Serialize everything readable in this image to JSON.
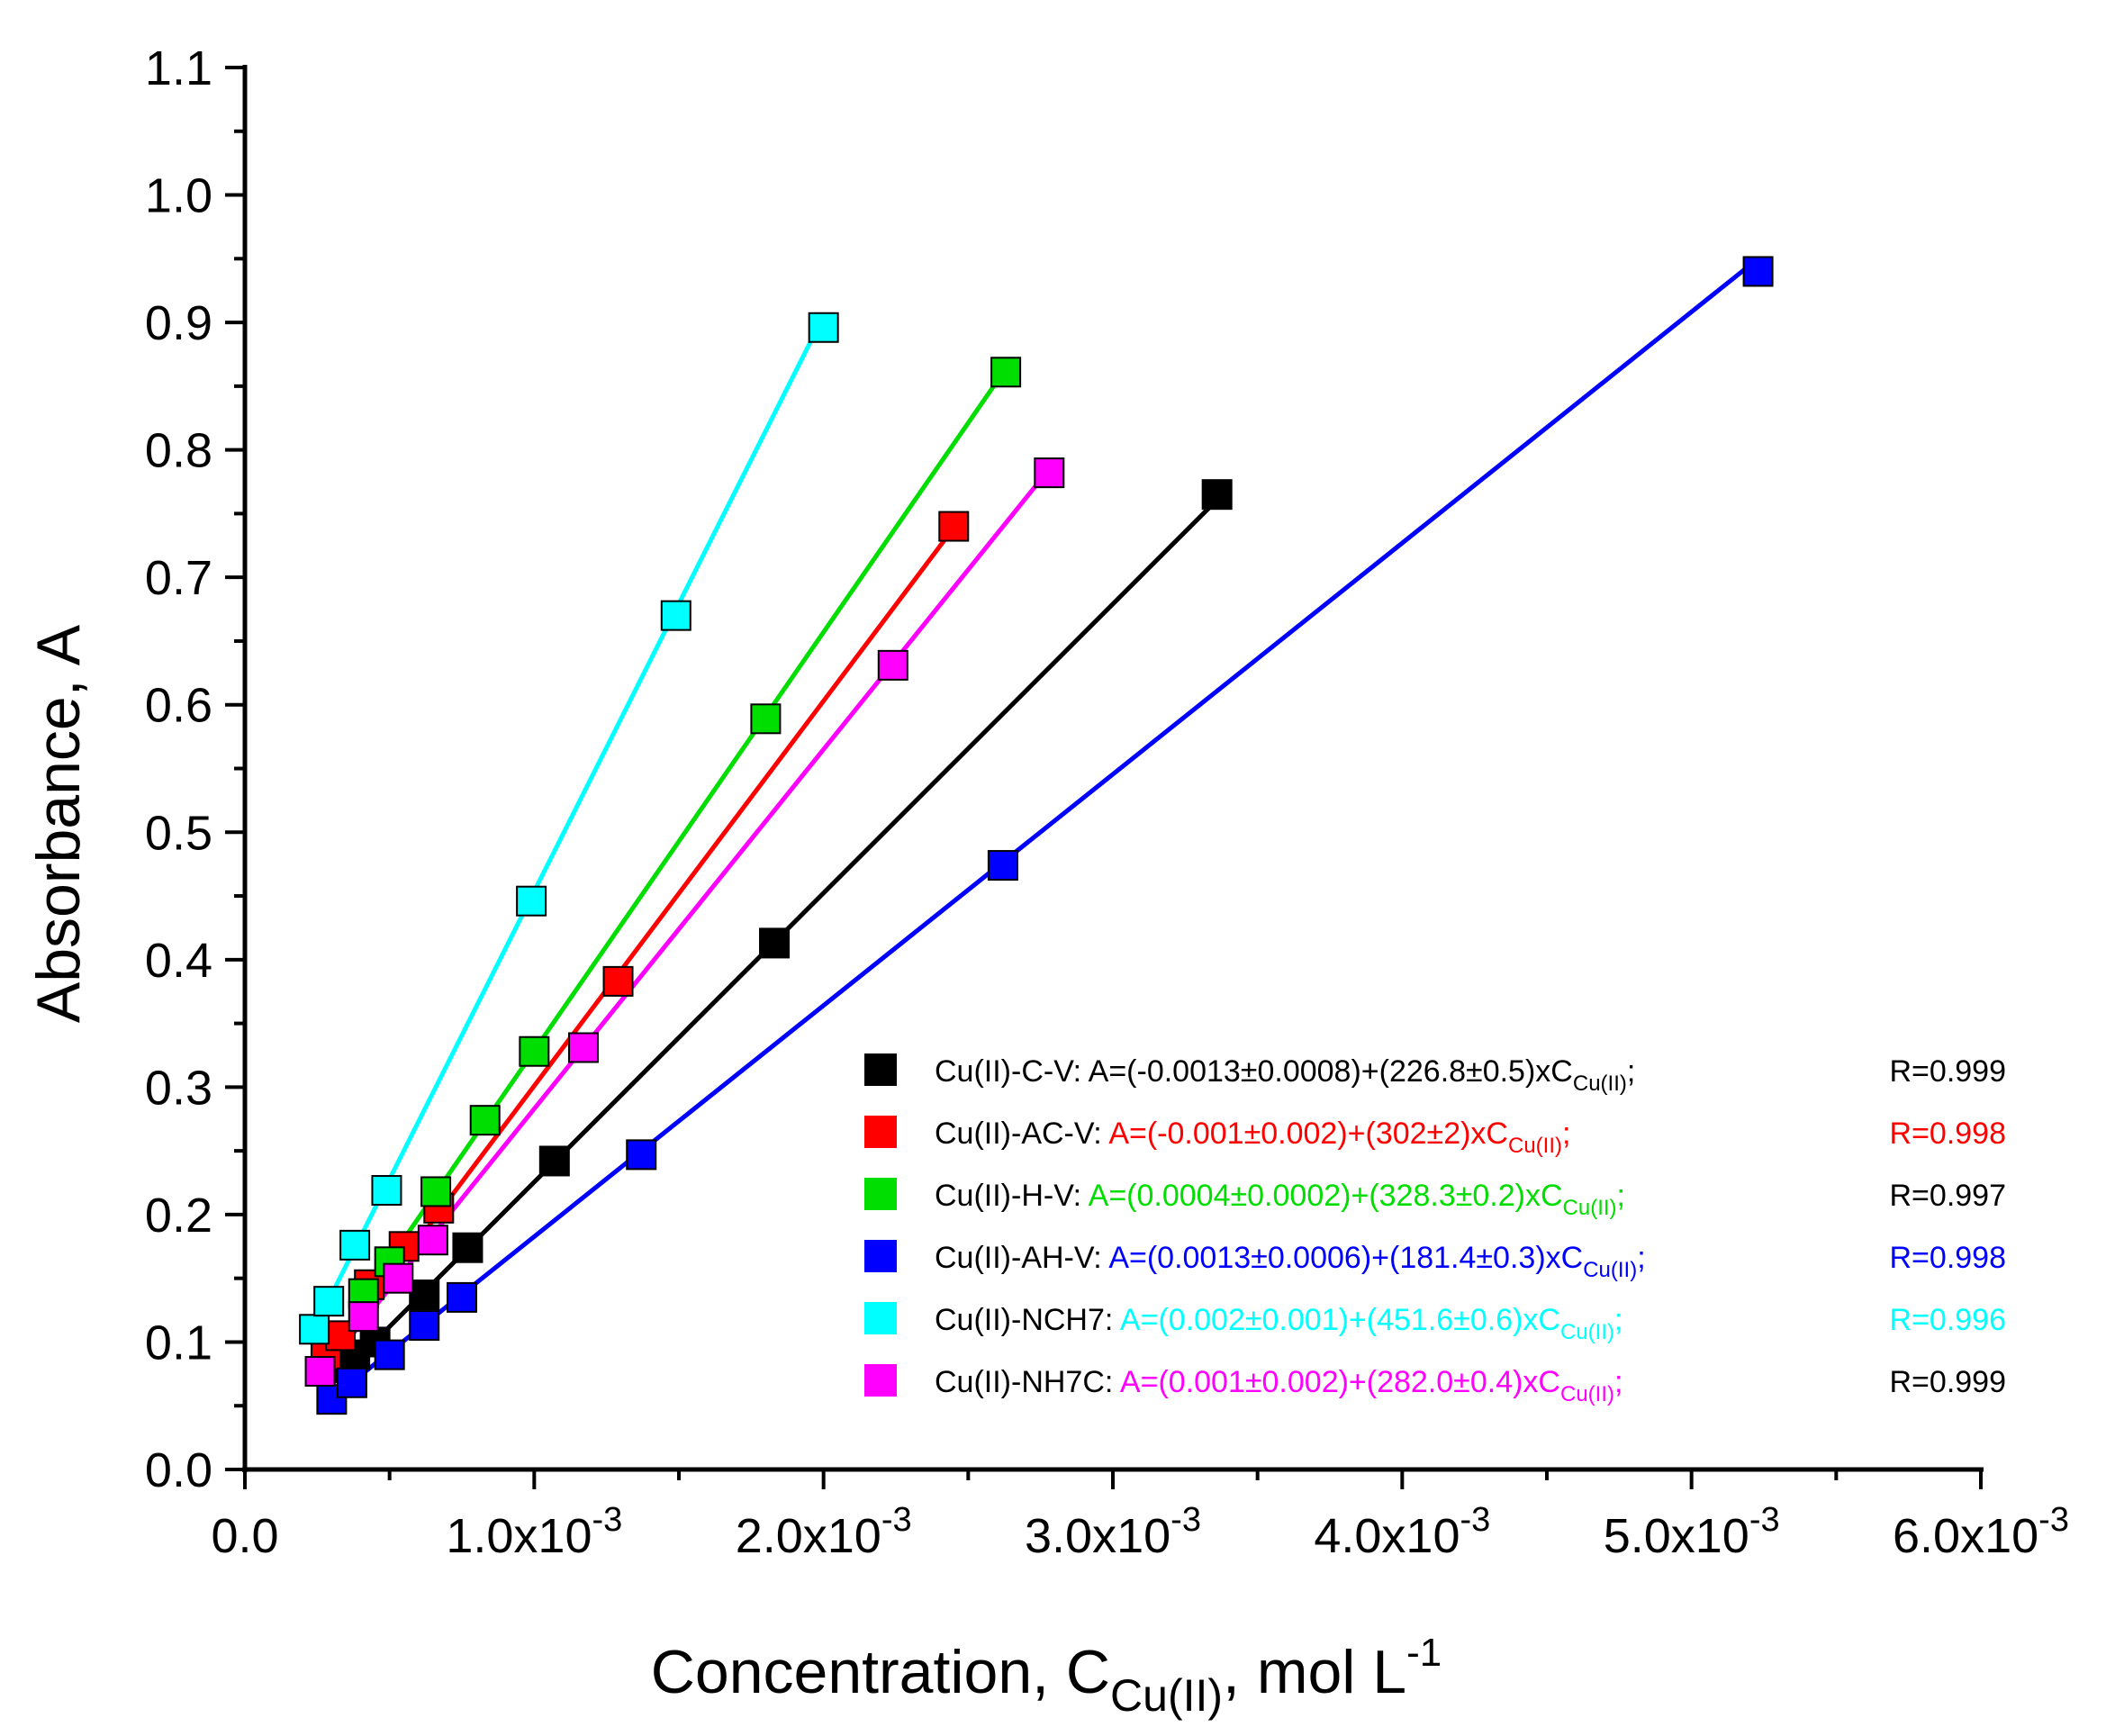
{
  "chart_data": {
    "type": "scatter",
    "xlabel": {
      "main": "Concentration, C",
      "sub": "Cu(II)",
      "unit": ", mol L",
      "sup": "-1"
    },
    "ylabel": "Absorbance, A",
    "xlim": [
      0,
      0.006
    ],
    "ylim": [
      0,
      1.1
    ],
    "grid": false,
    "legend_position": "bottom-right",
    "x_ticks": [
      {
        "value": 0,
        "mant": "0.0",
        "times": "",
        "exp": ""
      },
      {
        "value": 0.001,
        "mant": "1.0",
        "times": "x10",
        "exp": "-3"
      },
      {
        "value": 0.002,
        "mant": "2.0",
        "times": "x10",
        "exp": "-3"
      },
      {
        "value": 0.003,
        "mant": "3.0",
        "times": "x10",
        "exp": "-3"
      },
      {
        "value": 0.004,
        "mant": "4.0",
        "times": "x10",
        "exp": "-3"
      },
      {
        "value": 0.005,
        "mant": "5.0",
        "times": "x10",
        "exp": "-3"
      },
      {
        "value": 0.006,
        "mant": "6.0",
        "times": "x10",
        "exp": "-3"
      }
    ],
    "y_ticks": [
      {
        "value": 0.0,
        "label": "0.0"
      },
      {
        "value": 0.1,
        "label": "0.1"
      },
      {
        "value": 0.2,
        "label": "0.2"
      },
      {
        "value": 0.3,
        "label": "0.3"
      },
      {
        "value": 0.4,
        "label": "0.4"
      },
      {
        "value": 0.5,
        "label": "0.5"
      },
      {
        "value": 0.6,
        "label": "0.6"
      },
      {
        "value": 0.7,
        "label": "0.7"
      },
      {
        "value": 0.8,
        "label": "0.8"
      },
      {
        "value": 0.9,
        "label": "0.9"
      },
      {
        "value": 1.0,
        "label": "1.0"
      },
      {
        "value": 1.1,
        "label": "1.1"
      }
    ],
    "series": [
      {
        "name": "Cu(II)-C-V",
        "color": "#000000",
        "eq_color": "#000000",
        "label": "Cu(II)-C-V: ",
        "eq_pre": "A=(-0.0013±0.0008)+(226.8±0.5)xC",
        "eq_sub": "Cu(II)",
        "eq_post": ";",
        "r_text": "R=0.999",
        "r_color": "#000000",
        "fit": {
          "intercept": -0.0013,
          "slope": 226.8
        },
        "x": [
          0.00028,
          0.00033,
          0.00038,
          0.00045,
          0.00062,
          0.00077,
          0.00107,
          0.00183,
          0.00336
        ],
        "y": [
          0.082,
          0.087,
          0.09,
          0.1,
          0.137,
          0.174,
          0.242,
          0.413,
          0.765
        ]
      },
      {
        "name": "Cu(II)-AC-V",
        "color": "#ff0000",
        "eq_color": "#ff0000",
        "label": "Cu(II)-AC-V: ",
        "eq_pre": "A=(-0.001±0.002)+(302±2)xC",
        "eq_sub": "Cu(II)",
        "eq_post": ";",
        "r_text": "R=0.998",
        "r_color": "#ff0000",
        "fit": {
          "intercept": -0.001,
          "slope": 302
        },
        "x": [
          0.00028,
          0.00033,
          0.00043,
          0.00055,
          0.00067,
          0.00129,
          0.00245
        ],
        "y": [
          0.09,
          0.105,
          0.145,
          0.175,
          0.205,
          0.383,
          0.74
        ]
      },
      {
        "name": "Cu(II)-H-V",
        "color": "#00dd00",
        "eq_color": "#00dd00",
        "label": "Cu(II)-H-V: ",
        "eq_pre": "A=(0.0004±0.0002)+(328.3±0.2)xC",
        "eq_sub": "Cu(II)",
        "eq_post": ";",
        "r_text": "R=0.997",
        "r_color": "#000000",
        "fit": {
          "intercept": 0.0004,
          "slope": 328.3
        },
        "x": [
          0.00041,
          0.0005,
          0.00066,
          0.00083,
          0.001,
          0.0018,
          0.00263
        ],
        "y": [
          0.138,
          0.163,
          0.218,
          0.274,
          0.328,
          0.589,
          0.861
        ]
      },
      {
        "name": "Cu(II)-AH-V",
        "color": "#0000ff",
        "eq_color": "#0000ff",
        "label": "Cu(II)-AH-V: ",
        "eq_pre": "A=(0.0013±0.0006)+(181.4±0.3)xC",
        "eq_sub": "Cu(II)",
        "eq_post": ";",
        "r_text": "R=0.998",
        "r_color": "#0000ff",
        "fit": {
          "intercept": 0.0013,
          "slope": 181.4
        },
        "x": [
          0.0003,
          0.00037,
          0.0005,
          0.00062,
          0.00075,
          0.00137,
          0.00262,
          0.00523
        ],
        "y": [
          0.055,
          0.068,
          0.09,
          0.113,
          0.135,
          0.247,
          0.474,
          0.94
        ]
      },
      {
        "name": "Cu(II)-NCH7",
        "color": "#00ffff",
        "eq_color": "#00ffff",
        "label": "Cu(II)-NCH7: ",
        "eq_pre": "A=(0.002±0.001)+(451.6±0.6)xC",
        "eq_sub": "Cu(II)",
        "eq_post": ";",
        "r_text": "R=0.996",
        "r_color": "#00ffff",
        "fit": {
          "intercept": 0.002,
          "slope": 451.6
        },
        "x": [
          0.00024,
          0.00029,
          0.00038,
          0.00049,
          0.00099,
          0.00149,
          0.002
        ],
        "y": [
          0.11,
          0.132,
          0.176,
          0.219,
          0.446,
          0.67,
          0.896
        ]
      },
      {
        "name": "Cu(II)-NH7C",
        "color": "#ff00ff",
        "eq_color": "#ff00ff",
        "label": "Cu(II)-NH7C: ",
        "eq_pre": "A=(0.001±0.002)+(282.0±0.4)xC",
        "eq_sub": "Cu(II)",
        "eq_post": ";",
        "r_text": "R=0.999",
        "r_color": "#000000",
        "fit": {
          "intercept": 0.001,
          "slope": 282.0
        },
        "x": [
          0.00026,
          0.00041,
          0.00053,
          0.00065,
          0.00117,
          0.00224,
          0.00278
        ],
        "y": [
          0.077,
          0.12,
          0.15,
          0.18,
          0.331,
          0.631,
          0.782
        ]
      }
    ]
  }
}
